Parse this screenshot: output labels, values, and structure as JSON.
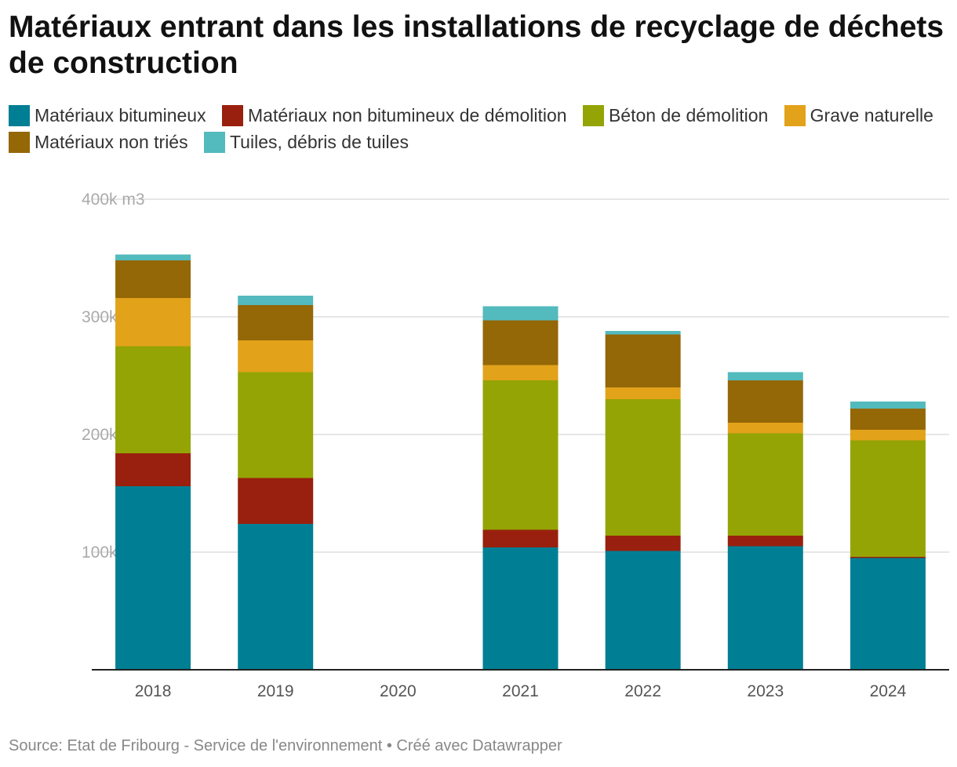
{
  "title": "Matériaux entrant dans les installations de recyclage de déchets de construction",
  "source": "Source: Etat de Fribourg - Service de l'environnement • Créé avec Datawrapper",
  "chart_data": {
    "type": "bar",
    "stacked": true,
    "title": "Matériaux entrant dans les installations de recyclage de déchets de construction",
    "xlabel": "",
    "ylabel": "m3",
    "ylim": [
      0,
      400000
    ],
    "yticks": [
      {
        "value": 100000,
        "label": "100k"
      },
      {
        "value": 200000,
        "label": "200k"
      },
      {
        "value": 300000,
        "label": "300k"
      },
      {
        "value": 400000,
        "label": "400k m3"
      }
    ],
    "grid": true,
    "legend_position": "top",
    "categories": [
      "2018",
      "2019",
      "2020",
      "2021",
      "2022",
      "2023",
      "2024"
    ],
    "series": [
      {
        "name": "Matériaux bitumineux",
        "color": "#007f94",
        "values": [
          156000,
          124000,
          null,
          104000,
          101000,
          105000,
          95000
        ]
      },
      {
        "name": "Matériaux non bitumineux de démolition",
        "color": "#99200e",
        "values": [
          28000,
          39000,
          null,
          15000,
          13000,
          9000,
          1000
        ]
      },
      {
        "name": "Béton de démolition",
        "color": "#94a405",
        "values": [
          91000,
          90000,
          null,
          127000,
          116000,
          87000,
          99000
        ]
      },
      {
        "name": "Grave naturelle",
        "color": "#e2a21a",
        "values": [
          41000,
          27000,
          null,
          13000,
          10000,
          9000,
          9000
        ]
      },
      {
        "name": "Matériaux non triés",
        "color": "#946707",
        "values": [
          32000,
          30000,
          null,
          38000,
          45000,
          36000,
          18000
        ]
      },
      {
        "name": "Tuiles, débris de tuiles",
        "color": "#53babd",
        "values": [
          5000,
          8000,
          null,
          12000,
          3000,
          7000,
          6000
        ]
      }
    ]
  }
}
